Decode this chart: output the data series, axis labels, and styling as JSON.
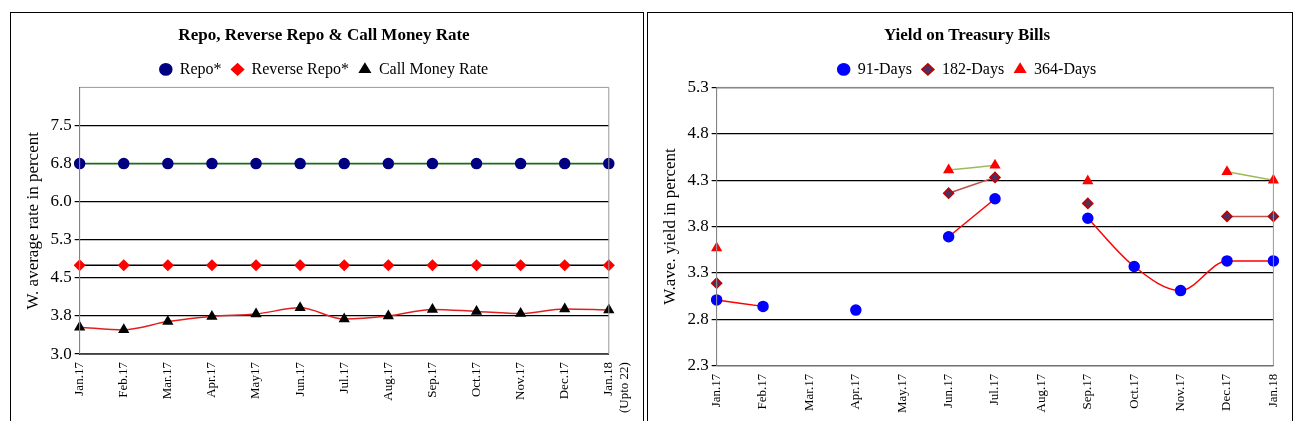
{
  "chart_data": [
    {
      "type": "line",
      "title": "Repo, Reverse Repo & Call Money Rate",
      "ylabel": "W. average rate in percent",
      "categories": [
        "Jan.17",
        "Feb.17",
        "Mar.17",
        "Apr.17",
        "May17",
        "Jun.17",
        "Jul.17",
        "Aug.17",
        "Sep.17",
        "Oct.17",
        "Nov.17",
        "Dec.17",
        "Jan.18\n(Upto 22)"
      ],
      "ylim": [
        3.0,
        8.25
      ],
      "yticks": [
        {
          "value": 3.0,
          "label": "3.0"
        },
        {
          "value": 3.75,
          "label": "3.8"
        },
        {
          "value": 4.5,
          "label": "4.5"
        },
        {
          "value": 5.25,
          "label": "5.3"
        },
        {
          "value": 6.0,
          "label": "6.0"
        },
        {
          "value": 6.75,
          "label": "6.8"
        },
        {
          "value": 7.5,
          "label": "7.5"
        }
      ],
      "grid": "y",
      "legend": "top",
      "series": [
        {
          "name": "Repo*",
          "color": "#008000",
          "colors": [
            "#000080",
            "#000080",
            "#000080",
            "#000080",
            "#000080",
            "#000080",
            "#000080",
            "#000080",
            "#000080",
            "#000080",
            "#000080",
            "#000080",
            "#000080"
          ],
          "marker": "circle",
          "values": [
            6.75,
            6.75,
            6.75,
            6.75,
            6.75,
            6.75,
            6.75,
            6.75,
            6.75,
            6.75,
            6.75,
            6.75,
            6.75
          ]
        },
        {
          "name": "Reverse Repo*",
          "color": "#000000",
          "colors": [
            "#ff0000",
            "#ff0000",
            "#ff0000",
            "#ff0000",
            "#ff0000",
            "#ff0000",
            "#ff0000",
            "#ff0000",
            "#ff0000",
            "#ff0000",
            "#ff0000",
            "#ff0000",
            "#ff0000"
          ],
          "marker": "diamond",
          "values": [
            4.75,
            4.75,
            4.75,
            4.75,
            4.75,
            4.75,
            4.75,
            4.75,
            4.75,
            4.75,
            4.75,
            4.75,
            4.75
          ]
        },
        {
          "name": "Call Money Rate",
          "color": "#e02020",
          "colors": [
            "#000000",
            "#000000",
            "#000000",
            "#000000",
            "#000000",
            "#000000",
            "#000000",
            "#000000",
            "#000000",
            "#000000",
            "#000000",
            "#000000",
            "#000000"
          ],
          "marker": "triangle",
          "values": [
            3.53,
            3.48,
            3.64,
            3.74,
            3.79,
            3.91,
            3.69,
            3.75,
            3.88,
            3.84,
            3.8,
            3.89,
            3.87
          ]
        }
      ]
    },
    {
      "type": "line",
      "title": "Yield on Treasury Bills",
      "ylabel": "W.ave. yield in percent",
      "categories": [
        "Jan.17",
        "Feb.17",
        "Mar.17",
        "Apr.17",
        "May.17",
        "Jun.17",
        "Jul.17",
        "Aug.17",
        "Sep.17",
        "Oct.17",
        "Nov.17",
        "Dec.17",
        "Jan.18"
      ],
      "ylim": [
        2.3,
        5.3
      ],
      "yticks": [
        2.3,
        2.8,
        3.3,
        3.8,
        4.3,
        4.8,
        5.3
      ],
      "grid": "y",
      "legend": "top",
      "series": [
        {
          "name": "91-Days",
          "color": "#ff0000",
          "colors": [
            "#0000ff",
            "#0000ff",
            "#0000ff",
            "#0000ff",
            "#0000ff",
            "#0000ff",
            "#0000ff",
            "#0000ff",
            "#0000ff",
            "#0000ff",
            "#0000ff",
            "#0000ff",
            "#0000ff"
          ],
          "marker": "circle",
          "values": [
            3.01,
            2.94,
            null,
            2.9,
            null,
            3.69,
            4.1,
            null,
            3.89,
            3.37,
            3.11,
            3.43,
            3.43
          ]
        },
        {
          "name": "182-Days",
          "color": "#c0504d",
          "colors": [
            "#4b3060",
            "#4b3060",
            "#4b3060",
            "#4b3060",
            "#4b3060",
            "#4b3060",
            "#4b3060",
            "#4b3060",
            "#4b3060",
            "#4b3060",
            "#4b3060",
            "#4b3060",
            "#4b3060"
          ],
          "marker": "diamond",
          "values": [
            3.19,
            null,
            null,
            null,
            null,
            4.16,
            4.33,
            null,
            4.05,
            null,
            null,
            3.91,
            3.91
          ]
        },
        {
          "name": "364-Days",
          "color": "#9bbb59",
          "colors": [
            "#ff0000",
            "#ff0000",
            "#ff0000",
            "#ff0000",
            "#ff0000",
            "#ff0000",
            "#ff0000",
            "#ff0000",
            "#ff0000",
            "#ff0000",
            "#ff0000",
            "#ff0000",
            "#ff0000"
          ],
          "marker": "triangle",
          "values": [
            3.57,
            null,
            null,
            null,
            null,
            4.41,
            4.46,
            null,
            4.29,
            null,
            null,
            4.39,
            4.3
          ]
        }
      ]
    }
  ]
}
